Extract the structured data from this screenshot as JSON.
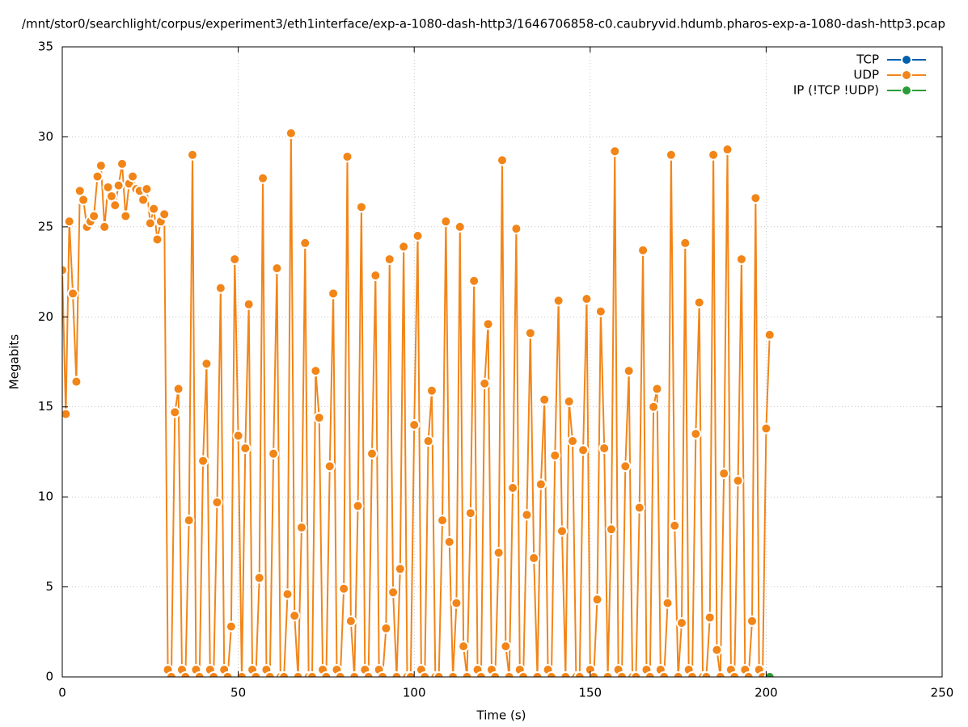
{
  "chart_data": {
    "type": "line",
    "title": "/mnt/stor0/searchlight/corpus/experiment3/eth1interface/exp-a-1080-dash-http3/1646706858-c0.caubryvid.hdumb.pharos-exp-a-1080-dash-http3.pcap",
    "x_label": "Time (s)",
    "y_label": "Megabits",
    "xlim": [
      0,
      250
    ],
    "xticks": [
      0,
      50,
      100,
      150,
      200,
      250
    ],
    "ylim": [
      0,
      35
    ],
    "yticks": [
      0,
      5,
      10,
      15,
      20,
      25,
      30,
      35
    ],
    "grid": true,
    "legend": "top-right",
    "series": [
      {
        "name": "TCP",
        "color": "#0060ad",
        "x": [],
        "values": []
      },
      {
        "name": "UDP",
        "color": "#f28518",
        "x": [
          0,
          1,
          2,
          3,
          4,
          5,
          6,
          7,
          8,
          9,
          10,
          11,
          12,
          13,
          14,
          15,
          16,
          17,
          18,
          19,
          20,
          21,
          22,
          23,
          24,
          25,
          26,
          27,
          28,
          29,
          30,
          31,
          32,
          33,
          34,
          35,
          36,
          37,
          38,
          39,
          40,
          41,
          42,
          43,
          44,
          45,
          46,
          47,
          48,
          49,
          50,
          51,
          52,
          53,
          54,
          55,
          56,
          57,
          58,
          59,
          60,
          61,
          62,
          63,
          64,
          65,
          66,
          67,
          68,
          69,
          70,
          71,
          72,
          73,
          74,
          75,
          76,
          77,
          78,
          79,
          80,
          81,
          82,
          83,
          84,
          85,
          86,
          87,
          88,
          89,
          90,
          91,
          92,
          93,
          94,
          95,
          96,
          97,
          98,
          99,
          100,
          101,
          102,
          103,
          104,
          105,
          106,
          107,
          108,
          109,
          110,
          111,
          112,
          113,
          114,
          115,
          116,
          117,
          118,
          119,
          120,
          121,
          122,
          123,
          124,
          125,
          126,
          127,
          128,
          129,
          130,
          131,
          132,
          133,
          134,
          135,
          136,
          137,
          138,
          139,
          140,
          141,
          142,
          143,
          144,
          145,
          146,
          147,
          148,
          149,
          150,
          151,
          152,
          153,
          154,
          155,
          156,
          157,
          158,
          159,
          160,
          161,
          162,
          163,
          164,
          165,
          166,
          167,
          168,
          169,
          170,
          171,
          172,
          173,
          174,
          175,
          176,
          177,
          178,
          179,
          180,
          181,
          182,
          183,
          184,
          185,
          186,
          187,
          188,
          189,
          190,
          191,
          192,
          193,
          194,
          195,
          196,
          197,
          198,
          199,
          200,
          201
        ],
        "values": [
          22.6,
          14.6,
          25.3,
          21.3,
          16.4,
          27.0,
          26.5,
          25.0,
          25.3,
          25.6,
          27.8,
          28.4,
          25.0,
          27.2,
          26.7,
          26.2,
          27.3,
          28.5,
          25.6,
          27.4,
          27.8,
          27.1,
          27.0,
          26.5,
          27.1,
          25.2,
          26.0,
          24.3,
          25.3,
          25.7,
          0.4,
          0,
          14.7,
          16.0,
          0.4,
          0,
          8.7,
          29.0,
          0.4,
          0,
          12.0,
          17.4,
          0.4,
          0,
          9.7,
          21.6,
          0.4,
          0,
          2.8,
          23.2,
          13.4,
          0,
          12.7,
          20.7,
          0.4,
          0,
          5.5,
          27.7,
          0.4,
          0,
          12.4,
          22.7,
          0,
          0,
          4.6,
          30.2,
          3.4,
          0,
          8.3,
          24.1,
          0,
          0,
          17.0,
          14.4,
          0.4,
          0,
          11.7,
          21.3,
          0.4,
          0,
          4.9,
          28.9,
          3.1,
          0,
          9.5,
          26.1,
          0.4,
          0,
          12.4,
          22.3,
          0.4,
          0,
          2.7,
          23.2,
          4.7,
          0,
          6.0,
          23.9,
          0,
          0,
          14.0,
          24.5,
          0.4,
          0,
          13.1,
          15.9,
          0,
          0,
          8.7,
          25.3,
          7.5,
          0,
          4.1,
          25.0,
          1.7,
          0,
          9.1,
          22.0,
          0.4,
          0,
          16.3,
          19.6,
          0.4,
          0,
          6.9,
          28.7,
          1.7,
          0,
          10.5,
          24.9,
          0.4,
          0,
          9.0,
          19.1,
          6.6,
          0,
          10.7,
          15.4,
          0.4,
          0,
          12.3,
          20.9,
          8.1,
          0,
          15.3,
          13.1,
          0,
          0,
          12.6,
          21.0,
          0.4,
          0,
          4.3,
          20.3,
          12.7,
          0,
          8.2,
          29.2,
          0.4,
          0,
          11.7,
          17.0,
          0,
          0,
          9.4,
          23.7,
          0.4,
          0,
          15.0,
          16.0,
          0.4,
          0,
          4.1,
          29.0,
          8.4,
          0,
          3.0,
          24.1,
          0.4,
          0,
          13.5,
          20.8,
          0,
          0,
          3.3,
          29.0,
          1.5,
          0,
          11.3,
          29.3,
          0.4,
          0,
          10.9,
          23.2,
          0.4,
          0,
          3.1,
          26.6,
          0.4,
          0,
          13.8,
          19.0
        ]
      },
      {
        "name": "IP (!TCP  !UDP)",
        "color": "#2a9c36",
        "x": [
          201
        ],
        "values": [
          0
        ]
      }
    ]
  }
}
